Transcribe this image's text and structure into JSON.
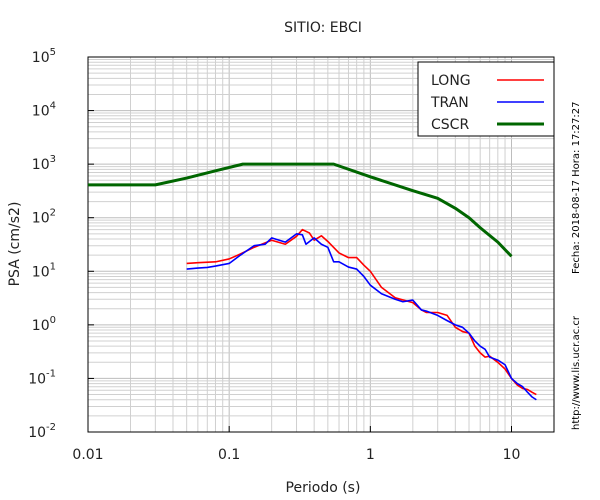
{
  "chart_data": {
    "type": "line",
    "title": "SITIO: EBCI",
    "xlabel": "Periodo (s)",
    "ylabel": "PSA (cm/s2)",
    "x_scale": "log",
    "y_scale": "log",
    "xlim": [
      0.01,
      20
    ],
    "ylim": [
      0.01,
      100000
    ],
    "x_ticks": [
      {
        "value": 0.01,
        "label": "0.01"
      },
      {
        "value": 0.1,
        "label": "0.1"
      },
      {
        "value": 1,
        "label": "1"
      },
      {
        "value": 10,
        "label": "10"
      }
    ],
    "y_ticks": [
      {
        "value": 0.01,
        "mantissa": "10",
        "exp": "-2"
      },
      {
        "value": 0.1,
        "mantissa": "10",
        "exp": "-1"
      },
      {
        "value": 1,
        "mantissa": "10",
        "exp": "0"
      },
      {
        "value": 10,
        "mantissa": "10",
        "exp": "1"
      },
      {
        "value": 100,
        "mantissa": "10",
        "exp": "2"
      },
      {
        "value": 1000,
        "mantissa": "10",
        "exp": "3"
      },
      {
        "value": 10000,
        "mantissa": "10",
        "exp": "4"
      },
      {
        "value": 100000,
        "mantissa": "10",
        "exp": "5"
      }
    ],
    "grid": true,
    "legend_position": "top-right",
    "series": [
      {
        "name": "LONG",
        "color": "#ff0000",
        "points": [
          [
            0.05,
            14
          ],
          [
            0.06,
            14.5
          ],
          [
            0.08,
            15
          ],
          [
            0.1,
            17
          ],
          [
            0.12,
            21
          ],
          [
            0.15,
            28
          ],
          [
            0.2,
            38
          ],
          [
            0.25,
            32
          ],
          [
            0.3,
            45
          ],
          [
            0.33,
            60
          ],
          [
            0.37,
            52
          ],
          [
            0.4,
            38
          ],
          [
            0.45,
            46
          ],
          [
            0.5,
            36
          ],
          [
            0.6,
            22
          ],
          [
            0.7,
            18
          ],
          [
            0.8,
            18
          ],
          [
            0.9,
            13
          ],
          [
            1.0,
            10
          ],
          [
            1.2,
            5
          ],
          [
            1.5,
            3.2
          ],
          [
            1.8,
            2.8
          ],
          [
            2.0,
            2.6
          ],
          [
            2.3,
            1.9
          ],
          [
            2.5,
            1.7
          ],
          [
            3.0,
            1.7
          ],
          [
            3.5,
            1.5
          ],
          [
            4.0,
            0.9
          ],
          [
            4.5,
            0.75
          ],
          [
            5.0,
            0.7
          ],
          [
            5.5,
            0.4
          ],
          [
            6.0,
            0.3
          ],
          [
            6.5,
            0.25
          ],
          [
            7.0,
            0.26
          ],
          [
            8.0,
            0.2
          ],
          [
            9.0,
            0.15
          ],
          [
            10.0,
            0.1
          ],
          [
            11.0,
            0.075
          ],
          [
            12.0,
            0.065
          ],
          [
            13.0,
            0.062
          ],
          [
            14.0,
            0.055
          ],
          [
            15.0,
            0.05
          ]
        ]
      },
      {
        "name": "TRAN",
        "color": "#0000ff",
        "points": [
          [
            0.05,
            11
          ],
          [
            0.06,
            11.5
          ],
          [
            0.07,
            11.8
          ],
          [
            0.08,
            12.5
          ],
          [
            0.1,
            14
          ],
          [
            0.12,
            20
          ],
          [
            0.15,
            30
          ],
          [
            0.18,
            32
          ],
          [
            0.2,
            42
          ],
          [
            0.25,
            35
          ],
          [
            0.3,
            50
          ],
          [
            0.33,
            48
          ],
          [
            0.35,
            32
          ],
          [
            0.4,
            42
          ],
          [
            0.45,
            32
          ],
          [
            0.5,
            28
          ],
          [
            0.55,
            15
          ],
          [
            0.6,
            15
          ],
          [
            0.7,
            12
          ],
          [
            0.8,
            11
          ],
          [
            0.9,
            8
          ],
          [
            1.0,
            5.5
          ],
          [
            1.2,
            3.8
          ],
          [
            1.5,
            3.0
          ],
          [
            1.7,
            2.7
          ],
          [
            2.0,
            2.9
          ],
          [
            2.3,
            1.9
          ],
          [
            2.5,
            1.8
          ],
          [
            3.0,
            1.5
          ],
          [
            3.5,
            1.2
          ],
          [
            4.0,
            1.0
          ],
          [
            4.5,
            0.9
          ],
          [
            5.0,
            0.7
          ],
          [
            5.5,
            0.5
          ],
          [
            6.0,
            0.4
          ],
          [
            6.5,
            0.35
          ],
          [
            7.0,
            0.25
          ],
          [
            8.0,
            0.22
          ],
          [
            9.0,
            0.18
          ],
          [
            10.0,
            0.1
          ],
          [
            11.0,
            0.08
          ],
          [
            12.0,
            0.07
          ],
          [
            13.0,
            0.055
          ],
          [
            14.0,
            0.045
          ],
          [
            15.0,
            0.04
          ]
        ]
      },
      {
        "name": "CSCR",
        "color": "#006600",
        "points": [
          [
            0.01,
            410
          ],
          [
            0.03,
            410
          ],
          [
            0.05,
            550
          ],
          [
            0.08,
            750
          ],
          [
            0.125,
            1000
          ],
          [
            0.55,
            1000
          ],
          [
            1.0,
            580
          ],
          [
            2.0,
            320
          ],
          [
            3.0,
            230
          ],
          [
            4.0,
            150
          ],
          [
            5.0,
            100
          ],
          [
            6.0,
            65
          ],
          [
            8.0,
            35
          ],
          [
            10.0,
            19
          ]
        ]
      }
    ]
  },
  "side": {
    "date_text": "Fecha: 2018-08-17  Hora: 17:27:27",
    "url_text": "http://www.lis.ucr.ac.cr"
  }
}
